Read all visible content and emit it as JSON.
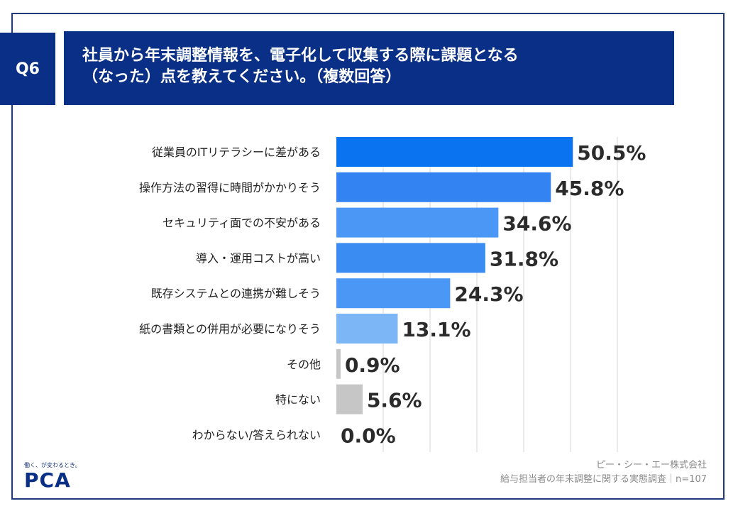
{
  "header": {
    "badge": "Q6",
    "title_line1": "社員から年末調整情報を、電子化して収集する際に課題となる",
    "title_line2": "（なった）点を教えてください。（複数回答）"
  },
  "chart_data": {
    "type": "bar",
    "orientation": "horizontal",
    "categories": [
      "従業員のITリテラシーに差がある",
      "操作方法の習得に時間がかかりそう",
      "セキュリティ面での不安がある",
      "導入・運用コストが高い",
      "既存システムとの連携が難しそう",
      "紙の書類との併用が必要になりそう",
      "その他",
      "特にない",
      "わからない/答えられない"
    ],
    "values": [
      50.5,
      45.8,
      34.6,
      31.8,
      24.3,
      13.1,
      0.9,
      5.6,
      0.0
    ],
    "labels": [
      "50.5%",
      "45.8%",
      "34.6%",
      "31.8%",
      "24.3%",
      "13.1%",
      "0.9%",
      "5.6%",
      "0.0%"
    ],
    "colors": [
      "#0a73f0",
      "#3384f2",
      "#4b97f5",
      "#3b8cf2",
      "#4a97f5",
      "#7db6f7",
      "#c6c6c6",
      "#c6c6c6",
      "#c6c6c6"
    ],
    "xlim": [
      0,
      60
    ],
    "grid": true
  },
  "logo": {
    "tagline": "働く、が変わるとき。",
    "brand": "PCA"
  },
  "source": {
    "line1": "ピー・シー・エー株式会社",
    "line2": "給与担当者の年末調整に関する実態調査｜n=107"
  }
}
